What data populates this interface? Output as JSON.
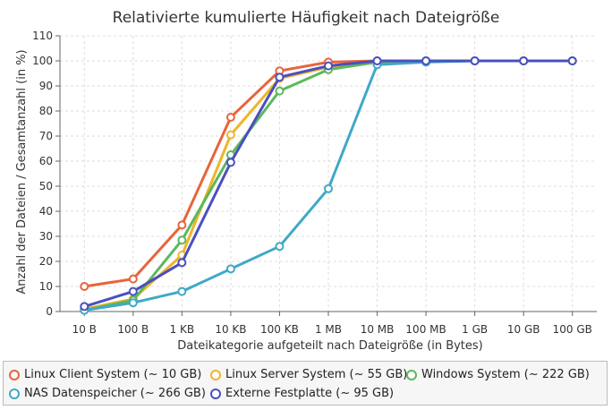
{
  "chart_data": {
    "type": "line",
    "title": "Relativierte kumulierte Häufigkeit nach Dateigröße",
    "xlabel": "Dateikategorie aufgeteilt nach Dateigröße (in Bytes)",
    "ylabel": "Anzahl der Dateien / Gesamtanzahl (in %)",
    "categories": [
      "10 B",
      "100 B",
      "1 KB",
      "10 KB",
      "100 KB",
      "1 MB",
      "10 MB",
      "100 MB",
      "1 GB",
      "10 GB",
      "100 GB"
    ],
    "ylim": [
      0,
      110
    ],
    "yticks": [
      0,
      10,
      20,
      30,
      40,
      50,
      60,
      70,
      80,
      90,
      100,
      110
    ],
    "grid": true,
    "legend_position": "bottom",
    "series": [
      {
        "name": "Linux Client System (~ 10 GB)",
        "color": "#e8643c",
        "values": [
          10,
          13,
          34.5,
          77.5,
          96,
          99.5,
          100,
          100,
          100,
          100,
          100
        ]
      },
      {
        "name": "Linux Server System (~ 55 GB)",
        "color": "#f0b429",
        "values": [
          1,
          5,
          22.5,
          70.5,
          93,
          97.5,
          99.5,
          100,
          100,
          100,
          100
        ]
      },
      {
        "name": "Windows System (~ 222 GB)",
        "color": "#5cb85c",
        "values": [
          0.5,
          4.5,
          28.5,
          62.5,
          88,
          96.5,
          99.5,
          100,
          100,
          100,
          100
        ]
      },
      {
        "name": "NAS Datenspeicher (~ 266 GB)",
        "color": "#3fa9c6",
        "values": [
          0.5,
          3.5,
          8,
          17,
          26,
          49,
          98.5,
          99.5,
          100,
          100,
          100
        ]
      },
      {
        "name": "Externe Festplatte (~ 95 GB)",
        "color": "#4a4fbf",
        "values": [
          2,
          8,
          19.5,
          59.5,
          93.5,
          98,
          100,
          100,
          100,
          100,
          100
        ]
      }
    ]
  }
}
